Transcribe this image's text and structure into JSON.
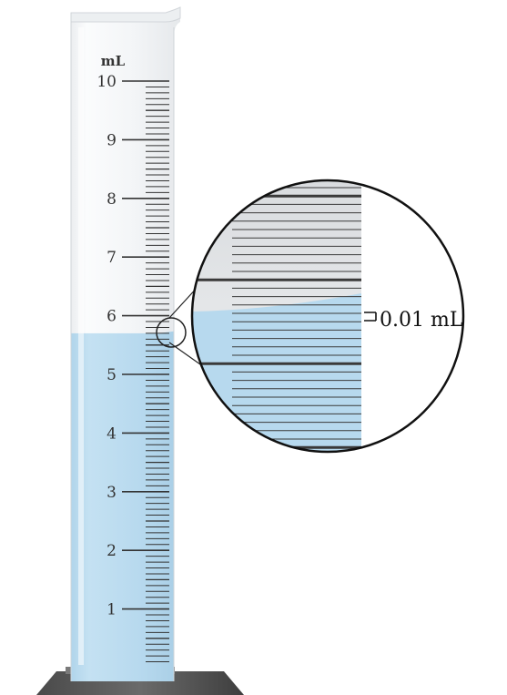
{
  "cylinder": {
    "unit_label": "mL",
    "scale_labels": [
      "1",
      "2",
      "3",
      "4",
      "5",
      "6",
      "7",
      "8",
      "9",
      "10"
    ],
    "scale_max_ml": 10,
    "minor_divisions_per_ml": 10,
    "liquid_level_ml": 5.7
  },
  "magnifier": {
    "annotation": "0.01 mL",
    "colors": {
      "liquid": "#b7d9ee",
      "glass": "#f1f3f5",
      "ink": "#333333"
    }
  }
}
